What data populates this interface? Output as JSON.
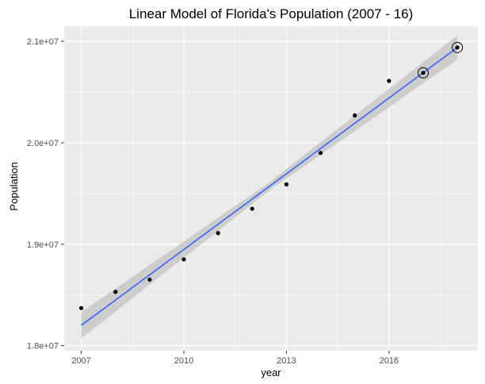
{
  "chart_data": {
    "type": "scatter",
    "title": "Linear Model of Florida's Population (2007 - 16)",
    "xlabel": "year",
    "ylabel": "Population",
    "xlim": [
      2006.5,
      2018.6
    ],
    "ylim": [
      17950000,
      21150000
    ],
    "x_ticks": [
      2007,
      2010,
      2013,
      2016
    ],
    "x_tick_labels": [
      "2007",
      "2010",
      "2013",
      "2016"
    ],
    "y_ticks": [
      18000000,
      19000000,
      20000000,
      21000000
    ],
    "y_tick_labels": [
      "1.8e+07",
      "1.9e+07",
      "2.0e+07",
      "2.1e+07"
    ],
    "grid": true,
    "colors": {
      "panel": "#EBEBEB",
      "grid": "#FFFFFF",
      "points": "#000000",
      "fit_line": "#3366FF",
      "ribbon": "#C8C8C8"
    },
    "points": [
      {
        "x": 2007,
        "y": 18370000
      },
      {
        "x": 2008,
        "y": 18530000
      },
      {
        "x": 2009,
        "y": 18650000
      },
      {
        "x": 2010,
        "y": 18850000
      },
      {
        "x": 2011,
        "y": 19110000
      },
      {
        "x": 2012,
        "y": 19350000
      },
      {
        "x": 2013,
        "y": 19590000
      },
      {
        "x": 2014,
        "y": 19900000
      },
      {
        "x": 2015,
        "y": 20270000
      },
      {
        "x": 2016,
        "y": 20610000
      }
    ],
    "predicted_points": [
      {
        "x": 2017,
        "y": 20690000
      },
      {
        "x": 2018,
        "y": 20940000
      }
    ],
    "fit_line": {
      "x": [
        2007,
        2018
      ],
      "y": [
        18200000,
        20940000
      ]
    },
    "ribbon": {
      "x": [
        2007,
        2012.5,
        2018
      ],
      "upper": [
        18330000,
        19610000,
        21060000
      ],
      "lower": [
        18070000,
        19530000,
        20820000
      ]
    }
  }
}
